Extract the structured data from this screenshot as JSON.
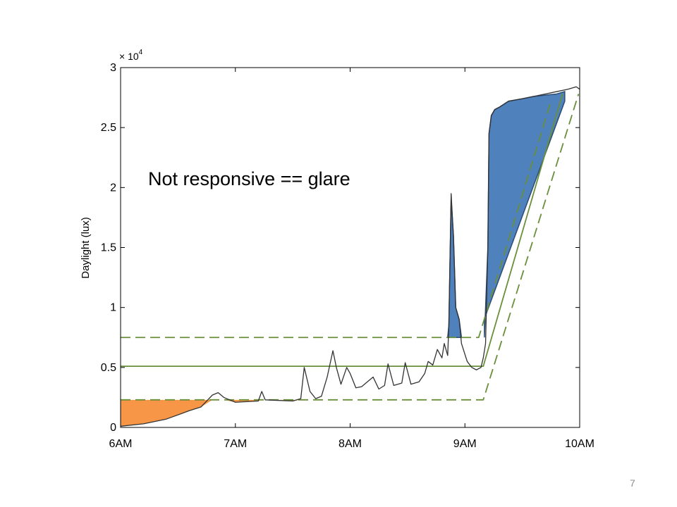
{
  "chart_data": {
    "type": "line",
    "title": "",
    "xlabel": "",
    "ylabel": "Daylight (lux)",
    "y_multiplier_label": "× 10",
    "y_multiplier_exponent": "4",
    "xlim": [
      6,
      10
    ],
    "ylim": [
      0,
      3
    ],
    "x_ticks": [
      6,
      7,
      8,
      9,
      10
    ],
    "x_tick_labels": [
      "6AM",
      "7AM",
      "8AM",
      "9AM",
      "10AM"
    ],
    "y_ticks": [
      0,
      0.5,
      1,
      1.5,
      2,
      2.5,
      3
    ],
    "y_tick_labels": [
      "0",
      "0.5",
      "1",
      "1.5",
      "2",
      "2.5",
      "3"
    ],
    "grid": false,
    "series": [
      {
        "kind": "measurement",
        "color": "#333333",
        "x": [
          6.0,
          6.2,
          6.4,
          6.6,
          6.7,
          6.8,
          6.85,
          6.9,
          7.0,
          7.2,
          7.23,
          7.26,
          7.5,
          7.57,
          7.6,
          7.65,
          7.7,
          7.75,
          7.8,
          7.85,
          7.88,
          7.92,
          7.97,
          8.0,
          8.05,
          8.1,
          8.15,
          8.2,
          8.25,
          8.3,
          8.33,
          8.38,
          8.45,
          8.48,
          8.53,
          8.6,
          8.65,
          8.68,
          8.72,
          8.76,
          8.8,
          8.82,
          8.85,
          8.86,
          8.88,
          8.9,
          8.92,
          8.95,
          8.97,
          9.02,
          9.06,
          9.1,
          9.14,
          9.16,
          9.18,
          9.2,
          9.21,
          9.23,
          9.26,
          9.3,
          9.38,
          9.5,
          9.6,
          9.7,
          9.8,
          9.9,
          9.97,
          10.0
        ],
        "y": [
          0.01,
          0.03,
          0.07,
          0.14,
          0.17,
          0.27,
          0.29,
          0.25,
          0.21,
          0.22,
          0.3,
          0.23,
          0.22,
          0.24,
          0.5,
          0.3,
          0.24,
          0.26,
          0.42,
          0.64,
          0.5,
          0.36,
          0.5,
          0.45,
          0.33,
          0.34,
          0.38,
          0.42,
          0.32,
          0.35,
          0.53,
          0.35,
          0.37,
          0.54,
          0.36,
          0.38,
          0.45,
          0.55,
          0.52,
          0.65,
          0.58,
          0.7,
          0.6,
          0.85,
          1.95,
          1.6,
          1.0,
          0.9,
          0.7,
          0.55,
          0.5,
          0.48,
          0.5,
          0.58,
          0.7,
          1.5,
          2.45,
          2.6,
          2.65,
          2.67,
          2.72,
          2.74,
          2.76,
          2.78,
          2.8,
          2.82,
          2.84,
          2.82
        ]
      },
      {
        "kind": "threshold-center",
        "color": "#6a8f3b",
        "style": "solid",
        "x": [
          6.0,
          9.16,
          9.85
        ],
        "y": [
          0.51,
          0.51,
          2.78
        ]
      },
      {
        "kind": "threshold-upper",
        "color": "#6a8f3b",
        "style": "dashed",
        "x": [
          6.0,
          9.12,
          9.75
        ],
        "y": [
          0.75,
          0.75,
          2.72
        ]
      },
      {
        "kind": "threshold-lower",
        "color": "#6a8f3b",
        "style": "dashed",
        "x": [
          6.0,
          9.16,
          9.99
        ],
        "y": [
          0.23,
          0.23,
          2.78
        ]
      }
    ],
    "shaded_regions": [
      {
        "kind": "below-lower-threshold",
        "color": "#f79646",
        "x": [
          6.0,
          6.2,
          6.4,
          6.6,
          6.7,
          6.8,
          6.85,
          6.9,
          7.0,
          7.2,
          7.23,
          7.26,
          7.5,
          7.56
        ],
        "y_top": 0.23,
        "y_bottom": [
          0.01,
          0.03,
          0.07,
          0.14,
          0.17,
          0.23,
          0.23,
          0.23,
          0.21,
          0.22,
          0.23,
          0.23,
          0.22,
          0.23
        ]
      },
      {
        "kind": "above-upper-threshold-spike",
        "color": "#4f81bd",
        "x": [
          8.85,
          8.86,
          8.88,
          8.9,
          8.92,
          8.95,
          8.97
        ],
        "y_top": [
          0.75,
          0.85,
          1.9,
          1.6,
          1.0,
          0.9,
          0.75
        ],
        "y_bottom": 0.75
      },
      {
        "kind": "above-upper-threshold-ramp",
        "color": "#4f81bd",
        "x": [
          9.17,
          9.2,
          9.21,
          9.23,
          9.26,
          9.3,
          9.38,
          9.5,
          9.6,
          9.7,
          9.8,
          9.87
        ],
        "y_top": [
          0.75,
          1.5,
          2.45,
          2.6,
          2.65,
          2.67,
          2.72,
          2.74,
          2.76,
          2.77,
          2.78,
          2.8
        ]
      }
    ],
    "annotations": [
      {
        "text": "Not responsive == glare"
      }
    ]
  },
  "page": {
    "number": "7"
  }
}
